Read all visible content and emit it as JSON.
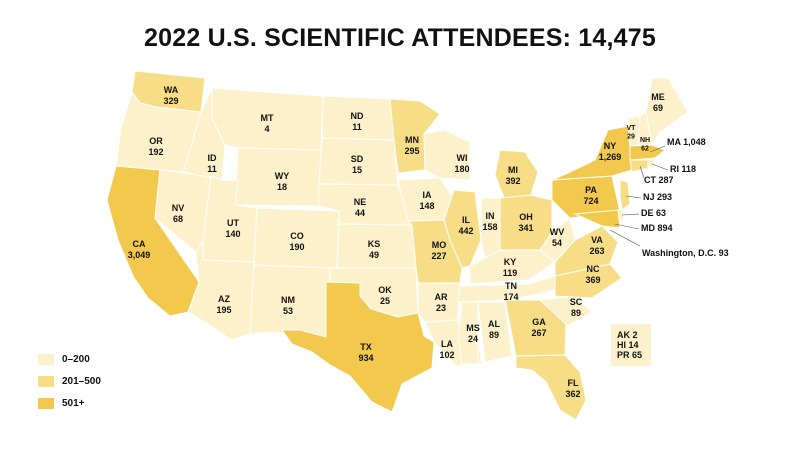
{
  "title": "2022 U.S. SCIENTIFIC ATTENDEES: 14,475",
  "colors": {
    "low": "#FDF1CC",
    "mid": "#F7DE86",
    "high": "#F2C94C",
    "border": "#ffffff",
    "text": "#111111"
  },
  "legend": [
    {
      "label": "0–200",
      "tier": "low"
    },
    {
      "label": "201–500",
      "tier": "mid"
    },
    {
      "label": "501+",
      "tier": "high"
    }
  ],
  "states": [
    {
      "abbr": "WA",
      "value": "329",
      "tier": "mid"
    },
    {
      "abbr": "OR",
      "value": "192",
      "tier": "low"
    },
    {
      "abbr": "CA",
      "value": "3,049",
      "tier": "high"
    },
    {
      "abbr": "NV",
      "value": "68",
      "tier": "low"
    },
    {
      "abbr": "ID",
      "value": "11",
      "tier": "low"
    },
    {
      "abbr": "MT",
      "value": "4",
      "tier": "low"
    },
    {
      "abbr": "WY",
      "value": "18",
      "tier": "low"
    },
    {
      "abbr": "UT",
      "value": "140",
      "tier": "low"
    },
    {
      "abbr": "AZ",
      "value": "195",
      "tier": "low"
    },
    {
      "abbr": "CO",
      "value": "190",
      "tier": "low"
    },
    {
      "abbr": "NM",
      "value": "53",
      "tier": "low"
    },
    {
      "abbr": "ND",
      "value": "11",
      "tier": "low"
    },
    {
      "abbr": "SD",
      "value": "15",
      "tier": "low"
    },
    {
      "abbr": "NE",
      "value": "44",
      "tier": "low"
    },
    {
      "abbr": "KS",
      "value": "49",
      "tier": "low"
    },
    {
      "abbr": "OK",
      "value": "25",
      "tier": "low"
    },
    {
      "abbr": "TX",
      "value": "934",
      "tier": "high"
    },
    {
      "abbr": "MN",
      "value": "295",
      "tier": "mid"
    },
    {
      "abbr": "IA",
      "value": "148",
      "tier": "low"
    },
    {
      "abbr": "MO",
      "value": "227",
      "tier": "mid"
    },
    {
      "abbr": "AR",
      "value": "23",
      "tier": "low"
    },
    {
      "abbr": "LA",
      "value": "102",
      "tier": "low"
    },
    {
      "abbr": "WI",
      "value": "180",
      "tier": "low"
    },
    {
      "abbr": "IL",
      "value": "442",
      "tier": "mid"
    },
    {
      "abbr": "MI",
      "value": "392",
      "tier": "mid"
    },
    {
      "abbr": "IN",
      "value": "158",
      "tier": "low"
    },
    {
      "abbr": "OH",
      "value": "341",
      "tier": "mid"
    },
    {
      "abbr": "KY",
      "value": "119",
      "tier": "low"
    },
    {
      "abbr": "TN",
      "value": "174",
      "tier": "low"
    },
    {
      "abbr": "MS",
      "value": "24",
      "tier": "low"
    },
    {
      "abbr": "AL",
      "value": "89",
      "tier": "low"
    },
    {
      "abbr": "GA",
      "value": "267",
      "tier": "mid"
    },
    {
      "abbr": "FL",
      "value": "362",
      "tier": "mid"
    },
    {
      "abbr": "SC",
      "value": "89",
      "tier": "low"
    },
    {
      "abbr": "NC",
      "value": "369",
      "tier": "mid"
    },
    {
      "abbr": "VA",
      "value": "263",
      "tier": "mid"
    },
    {
      "abbr": "WV",
      "value": "54",
      "tier": "low"
    },
    {
      "abbr": "PA",
      "value": "724",
      "tier": "high"
    },
    {
      "abbr": "NY",
      "value": "1,269",
      "tier": "high"
    },
    {
      "abbr": "VT",
      "value": "29",
      "tier": "low"
    },
    {
      "abbr": "NH",
      "value": "62",
      "tier": "low"
    },
    {
      "abbr": "ME",
      "value": "69",
      "tier": "low"
    },
    {
      "abbr": "MA",
      "value": "1,048",
      "tier": "high"
    },
    {
      "abbr": "RI",
      "value": "118",
      "tier": "low"
    },
    {
      "abbr": "CT",
      "value": "287",
      "tier": "mid"
    },
    {
      "abbr": "NJ",
      "value": "293",
      "tier": "mid"
    },
    {
      "abbr": "DE",
      "value": "63",
      "tier": "low"
    },
    {
      "abbr": "MD",
      "value": "894",
      "tier": "high"
    }
  ],
  "dc": {
    "name": "Washington, D.C.",
    "value": "93"
  },
  "territories": [
    {
      "abbr": "AK",
      "value": "2"
    },
    {
      "abbr": "HI",
      "value": "14"
    },
    {
      "abbr": "PR",
      "value": "65"
    }
  ]
}
